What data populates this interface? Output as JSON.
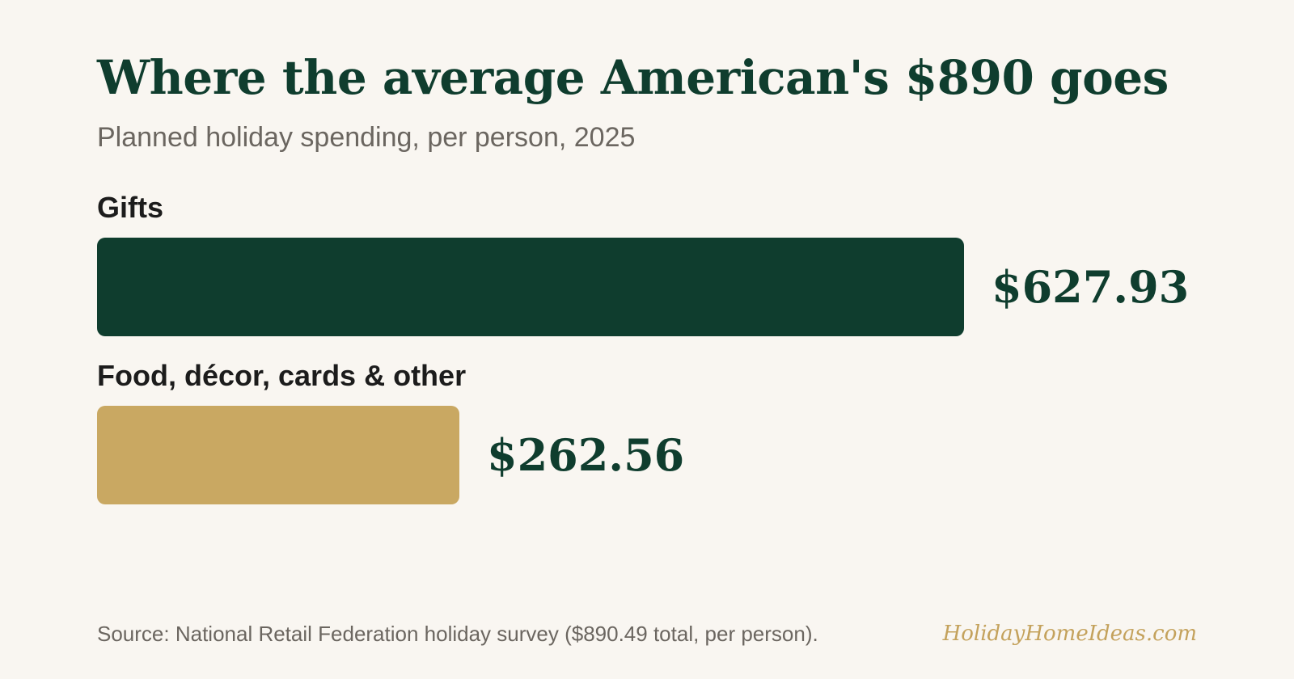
{
  "chart_data": {
    "type": "bar",
    "orientation": "horizontal",
    "title": "Where the average American's $890 goes",
    "subtitle": "Planned holiday spending, per person, 2025",
    "categories": [
      "Gifts",
      "Food, décor, cards & other"
    ],
    "values": [
      627.93,
      262.56
    ],
    "value_labels": [
      "$627.93",
      "$262.56"
    ],
    "colors": [
      "#0f3d2e",
      "#c9a862"
    ],
    "xlim": [
      0,
      627.93
    ],
    "grid": false,
    "axes_visible": false,
    "legend": "none"
  },
  "footer": {
    "source": "Source: National Retail Federation holiday survey ($890.49 total, per person).",
    "brand": "HolidayHomeIdeas.com"
  },
  "colors": {
    "background": "#f9f6f1",
    "title": "#0f3d2e",
    "subtitle": "#6b6660",
    "brand": "#c4a25c"
  }
}
